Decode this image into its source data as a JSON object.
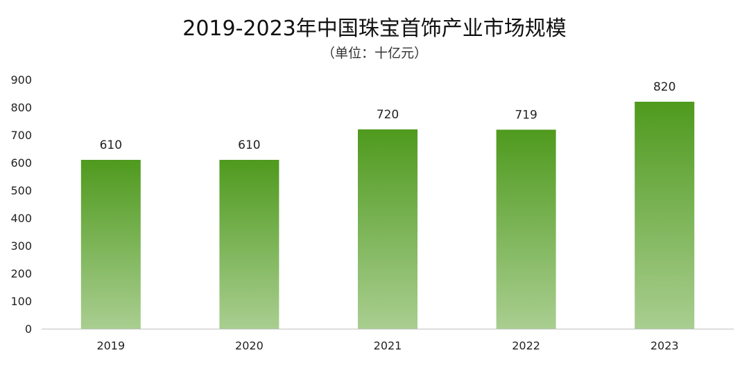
{
  "chart_data": {
    "type": "bar",
    "title": "2019-2023年中国珠宝首饰产业市场规模",
    "subtitle": "（单位：十亿元）",
    "categories": [
      "2019",
      "2020",
      "2021",
      "2022",
      "2023"
    ],
    "values": [
      610,
      610,
      720,
      719,
      820
    ],
    "data_labels": [
      "610",
      "610",
      "720",
      "719",
      "820"
    ],
    "ylim": [
      0,
      900
    ],
    "yticks": [
      0,
      100,
      200,
      300,
      400,
      500,
      600,
      700,
      800,
      900
    ],
    "grid": false,
    "legend": "none",
    "colors": {
      "bar_top": "#4f9a1e",
      "bar_bottom": "#a9ce90",
      "axis": "#bfbfbf"
    }
  }
}
